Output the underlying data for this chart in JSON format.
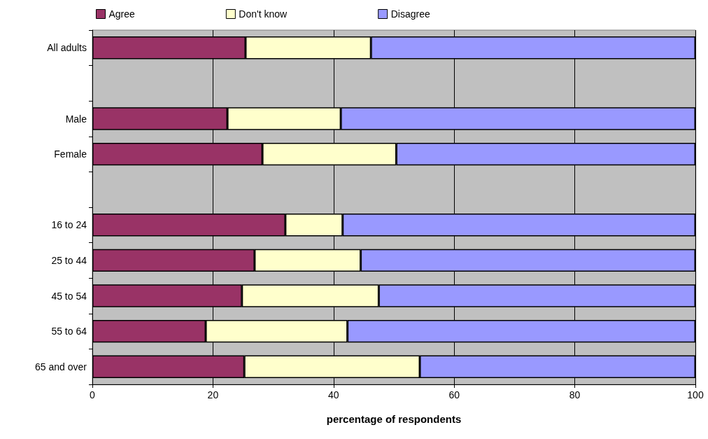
{
  "chart_data": {
    "type": "bar",
    "orientation": "horizontal",
    "stacked": true,
    "xlabel": "percentage of respondents",
    "categories": [
      "All adults",
      null,
      "Male",
      "Female",
      null,
      "16 to 24",
      "25 to 44",
      "45 to 54",
      "55 to 64",
      "65 and over"
    ],
    "series": [
      {
        "name": "Agree",
        "color": "#993366",
        "values": [
          25.4,
          null,
          22.4,
          28.2,
          null,
          32.0,
          26.9,
          24.8,
          18.8,
          25.2
        ]
      },
      {
        "name": "Don't know",
        "color": "#ffffcc",
        "values": [
          20.8,
          null,
          18.8,
          22.2,
          null,
          9.5,
          17.6,
          22.7,
          23.5,
          29.1
        ]
      },
      {
        "name": "Disagree",
        "color": "#9999ff",
        "values": [
          53.8,
          null,
          58.8,
          49.6,
          null,
          58.5,
          55.5,
          52.5,
          57.7,
          45.7
        ]
      }
    ],
    "xlim": [
      0,
      100
    ],
    "xticks": [
      0,
      20,
      40,
      60,
      80,
      100
    ],
    "grid": "x",
    "legend": "top"
  }
}
